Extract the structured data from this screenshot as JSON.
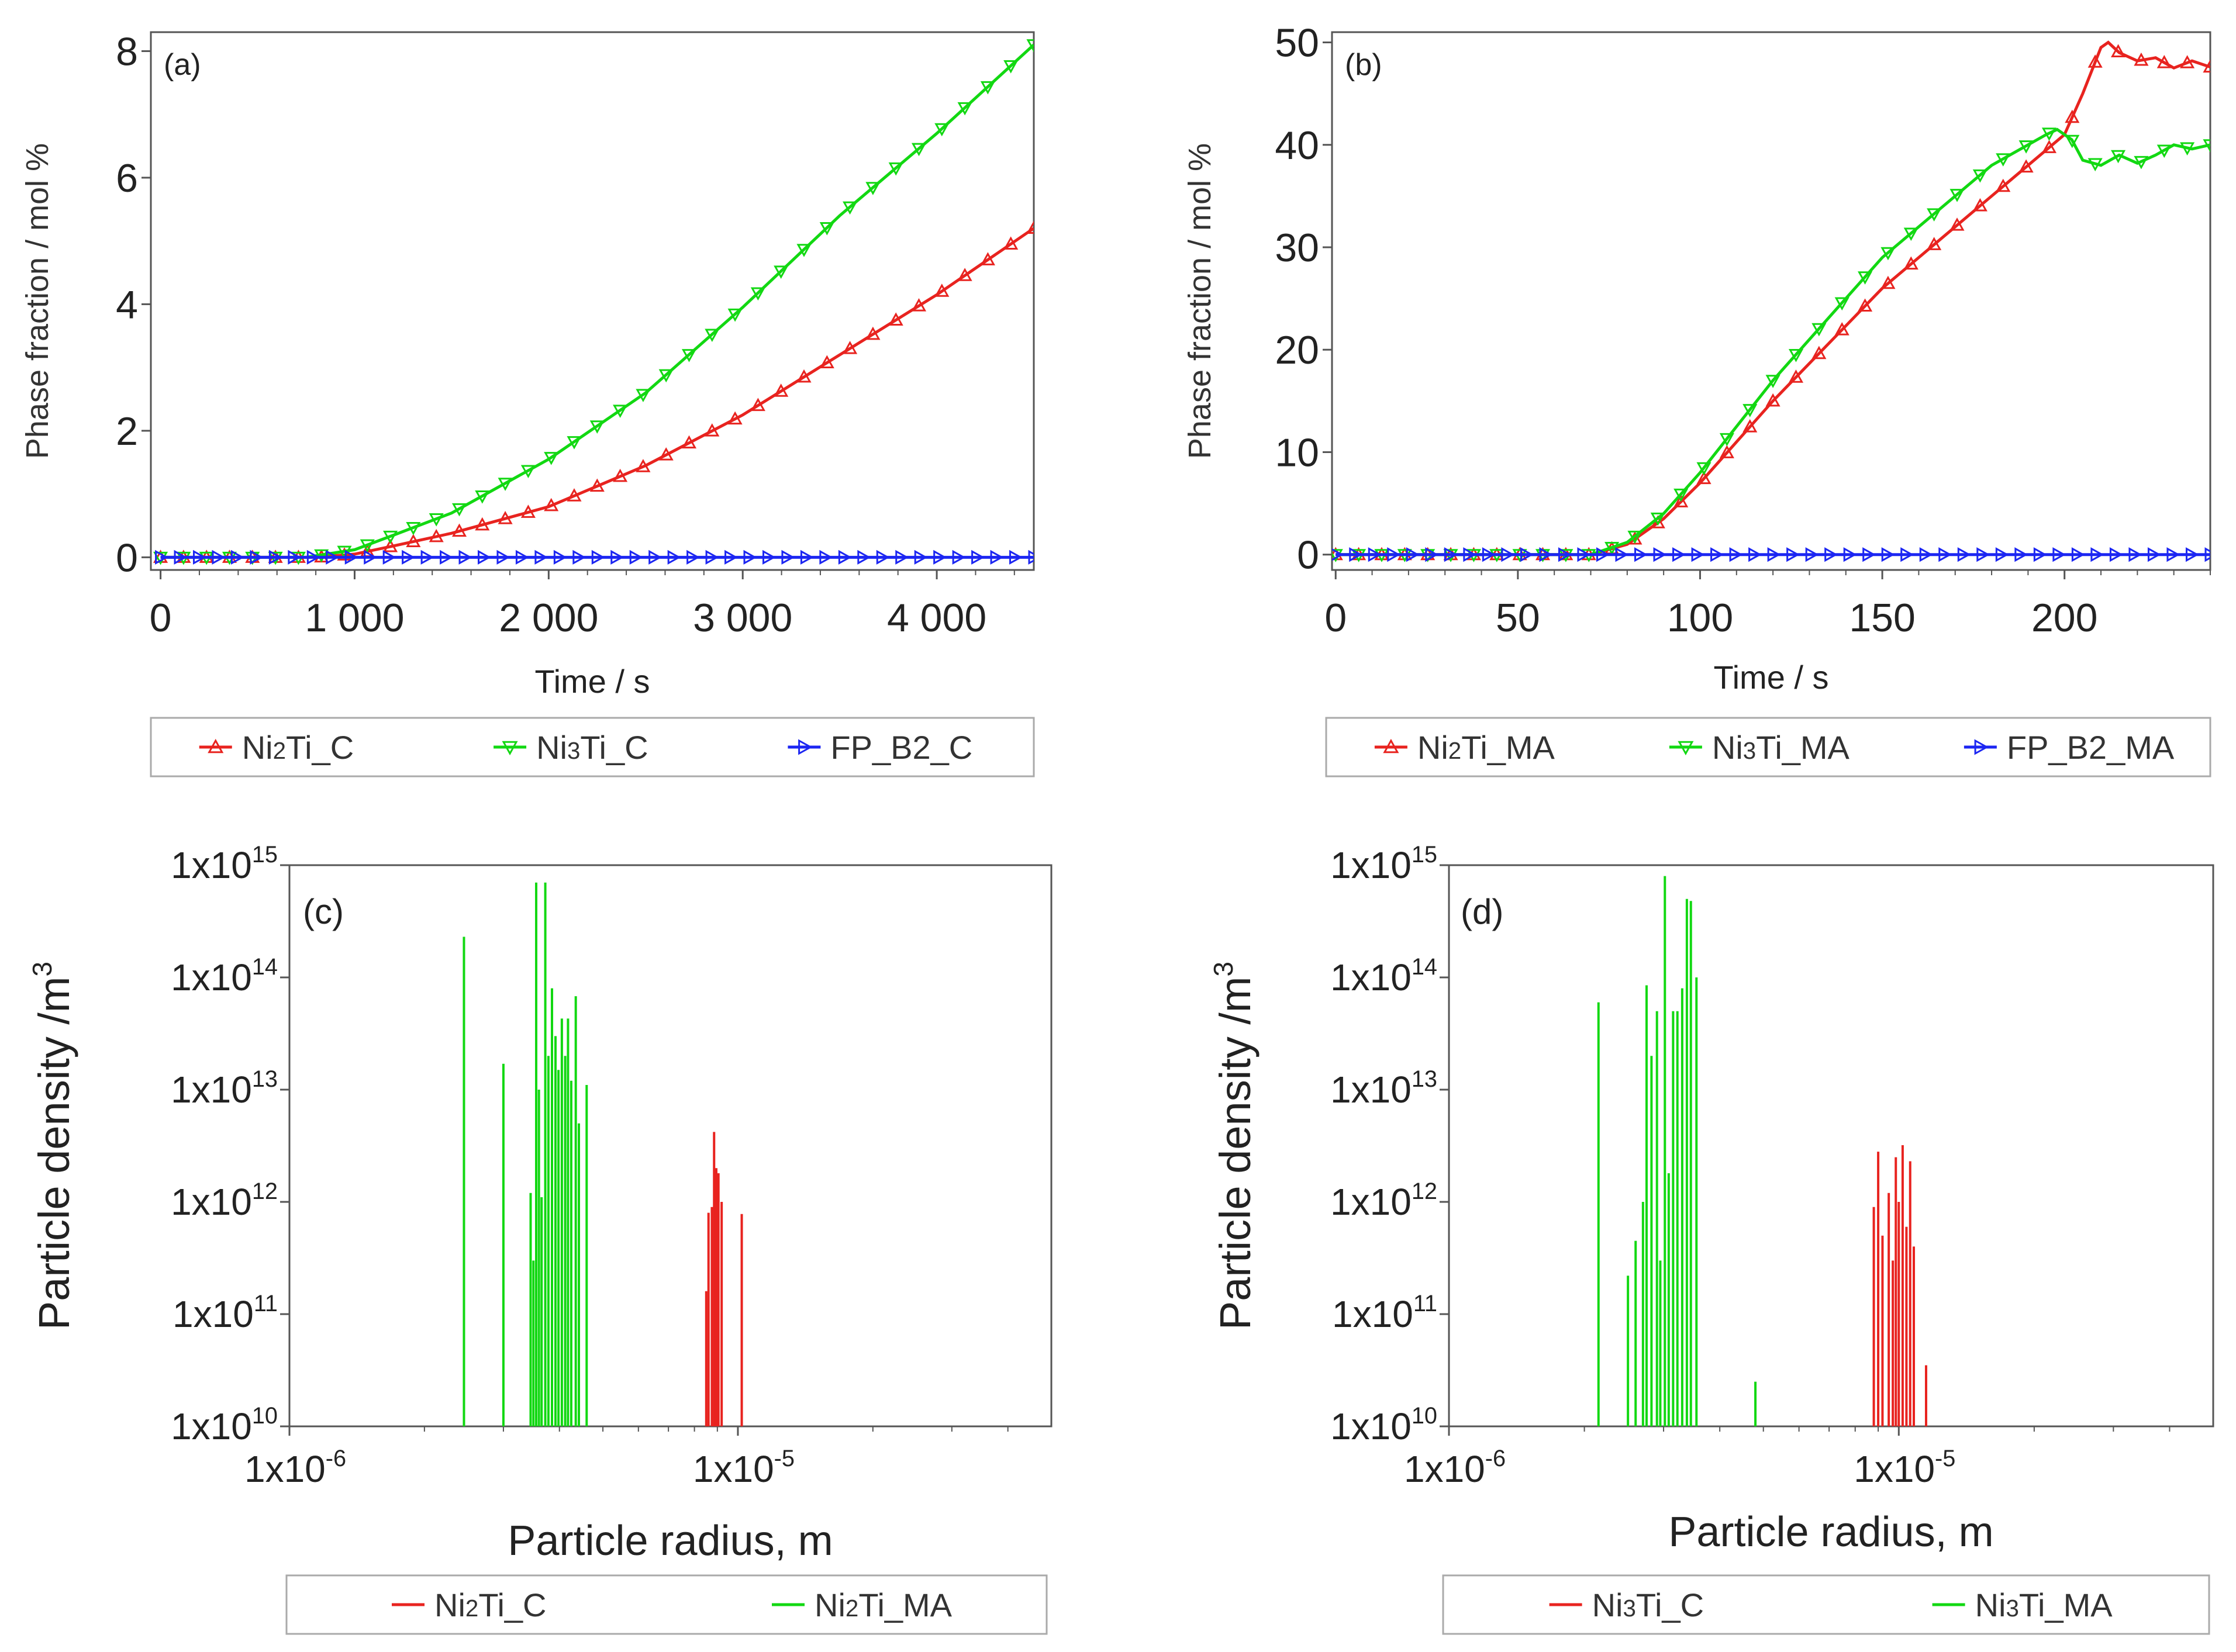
{
  "figure": "four-panel simulation figure",
  "colors": {
    "red": "#e8231f",
    "green": "#12d812",
    "blue": "#1c26f2",
    "frame": "#555555",
    "legend_border": "#aaaaaa",
    "text": "#333333"
  },
  "chart_data": [
    {
      "panel": "(a)",
      "type": "line",
      "xlabel": "Time / s",
      "ylabel": "Phase fraction / mol %",
      "xlim": [
        -50,
        4500
      ],
      "ylim": [
        -0.2,
        8.3
      ],
      "x_ticks": [
        0,
        1000,
        2000,
        3000,
        4000
      ],
      "x_tick_labels": [
        "0",
        "1 000",
        "2 000",
        "3 000",
        "4 000"
      ],
      "y_ticks": [
        0,
        2,
        4,
        6,
        8
      ],
      "y_tick_labels": [
        "0",
        "2",
        "4",
        "6",
        "8"
      ],
      "legend": [
        "Ni2Ti_C",
        "Ni3Ti_C",
        "FP_B2_C"
      ],
      "series": [
        {
          "name": "Ni2Ti_C",
          "color": "red",
          "marker": "triangle-up",
          "points": [
            [
              0,
              0
            ],
            [
              800,
              0
            ],
            [
              1000,
              0.05
            ],
            [
              1200,
              0.18
            ],
            [
              1500,
              0.38
            ],
            [
              2000,
              0.8
            ],
            [
              2500,
              1.45
            ],
            [
              3000,
              2.25
            ],
            [
              3500,
              3.2
            ],
            [
              4000,
              4.15
            ],
            [
              4500,
              5.2
            ]
          ]
        },
        {
          "name": "Ni3Ti_C",
          "color": "green",
          "marker": "triangle-down",
          "points": [
            [
              0,
              0
            ],
            [
              750,
              0
            ],
            [
              1000,
              0.12
            ],
            [
              1200,
              0.35
            ],
            [
              1500,
              0.7
            ],
            [
              2000,
              1.55
            ],
            [
              2500,
              2.6
            ],
            [
              3000,
              3.95
            ],
            [
              3500,
              5.4
            ],
            [
              4000,
              6.7
            ],
            [
              4500,
              8.1
            ]
          ]
        },
        {
          "name": "FP_B2_C",
          "color": "blue",
          "marker": "triangle-right",
          "points": [
            [
              0,
              0
            ],
            [
              4500,
              0
            ]
          ]
        }
      ]
    },
    {
      "panel": "(b)",
      "type": "line",
      "xlabel": "Time / s",
      "ylabel": "Phase fraction / mol %",
      "xlim": [
        -1,
        240
      ],
      "ylim": [
        -1.5,
        51
      ],
      "x_ticks": [
        0,
        50,
        100,
        150,
        200
      ],
      "x_tick_labels": [
        "0",
        "50",
        "100",
        "150",
        "200"
      ],
      "y_ticks": [
        0,
        10,
        20,
        30,
        40,
        50
      ],
      "y_tick_labels": [
        "0",
        "10",
        "20",
        "30",
        "40",
        "50"
      ],
      "legend": [
        "Ni2Ti_MA",
        "Ni3Ti_MA",
        "FP_B2_MA"
      ],
      "series": [
        {
          "name": "Ni2Ti_MA",
          "color": "red",
          "marker": "triangle-up",
          "points": [
            [
              0,
              0
            ],
            [
              70,
              0
            ],
            [
              80,
              1
            ],
            [
              90,
              3.5
            ],
            [
              100,
              7
            ],
            [
              120,
              15
            ],
            [
              150,
              26
            ],
            [
              180,
              35
            ],
            [
              200,
              41
            ],
            [
              205,
              45
            ],
            [
              210,
              49.5
            ],
            [
              212,
              50
            ],
            [
              215,
              49
            ],
            [
              220,
              48.2
            ],
            [
              225,
              48.5
            ],
            [
              230,
              47.5
            ],
            [
              235,
              48.2
            ],
            [
              240,
              47.6
            ]
          ]
        },
        {
          "name": "Ni3Ti_MA",
          "color": "green",
          "marker": "triangle-down",
          "points": [
            [
              0,
              0
            ],
            [
              70,
              0
            ],
            [
              80,
              1.2
            ],
            [
              90,
              4
            ],
            [
              100,
              8
            ],
            [
              120,
              17
            ],
            [
              150,
              29
            ],
            [
              180,
              38
            ],
            [
              195,
              41
            ],
            [
              198,
              41.5
            ],
            [
              202,
              40.5
            ],
            [
              205,
              38.5
            ],
            [
              210,
              38
            ],
            [
              215,
              39
            ],
            [
              220,
              38.2
            ],
            [
              225,
              39
            ],
            [
              230,
              40
            ],
            [
              235,
              39.6
            ],
            [
              240,
              40
            ]
          ]
        },
        {
          "name": "FP_B2_MA",
          "color": "blue",
          "marker": "triangle-right",
          "points": [
            [
              0,
              0
            ],
            [
              240,
              0
            ]
          ]
        }
      ]
    },
    {
      "panel": "(c)",
      "type": "bar",
      "log_x": true,
      "log_y": true,
      "xlabel": "Particle radius, m",
      "ylabel": "Particle density /m3",
      "xlim": [
        1e-06,
        5e-05
      ],
      "ylim": [
        10000000000.0,
        1000000000000000.0
      ],
      "x_ticks": [
        1e-06,
        1e-05
      ],
      "x_tick_labels": [
        "1x10-6",
        "1x10-5"
      ],
      "y_ticks": [
        10000000000.0,
        100000000000.0,
        1000000000000.0,
        10000000000000.0,
        100000000000000.0,
        1000000000000000.0
      ],
      "y_tick_labels": [
        "1x1010",
        "1x1011",
        "1x1012",
        "1x1013",
        "1x1014",
        "1x1015"
      ],
      "legend": [
        "Ni2Ti_C",
        "Ni2Ti_MA"
      ],
      "series": [
        {
          "name": "Ni2Ti_MA",
          "color": "green",
          "bars": [
            [
              2.45e-06,
              230000000000000.0
            ],
            [
              3e-06,
              17000000000000.0
            ],
            [
              3.45e-06,
              1200000000000.0
            ],
            [
              3.5e-06,
              300000000000.0
            ],
            [
              3.55e-06,
              700000000000000.0
            ],
            [
              3.6e-06,
              10000000000000.0
            ],
            [
              3.65e-06,
              1100000000000.0
            ],
            [
              3.72e-06,
              700000000000000.0
            ],
            [
              3.78e-06,
              20000000000000.0
            ],
            [
              3.85e-06,
              80000000000000.0
            ],
            [
              3.92e-06,
              30000000000000.0
            ],
            [
              3.98e-06,
              15000000000000.0
            ],
            [
              4.05e-06,
              43000000000000.0
            ],
            [
              4.12e-06,
              20000000000000.0
            ],
            [
              4.18e-06,
              43000000000000.0
            ],
            [
              4.25e-06,
              12000000000000.0
            ],
            [
              4.35e-06,
              68000000000000.0
            ],
            [
              4.42e-06,
              5000000000000.0
            ],
            [
              4.6e-06,
              11000000000000.0
            ]
          ]
        },
        {
          "name": "Ni2Ti_C",
          "color": "red",
          "bars": [
            [
              8.5e-06,
              160000000000.0
            ],
            [
              8.6e-06,
              800000000000.0
            ],
            [
              8.75e-06,
              900000000000.0
            ],
            [
              8.85e-06,
              4200000000000.0
            ],
            [
              8.95e-06,
              2000000000000.0
            ],
            [
              9.05e-06,
              1800000000000.0
            ],
            [
              9.2e-06,
              1000000000000.0
            ],
            [
              1.02e-05,
              780000000000.0
            ]
          ]
        }
      ]
    },
    {
      "panel": "(d)",
      "type": "bar",
      "log_x": true,
      "log_y": true,
      "xlabel": "Particle radius, m",
      "ylabel": "Particle density /m3",
      "xlim": [
        1e-06,
        5e-05
      ],
      "ylim": [
        10000000000.0,
        1000000000000000.0
      ],
      "x_ticks": [
        1e-06,
        1e-05
      ],
      "x_tick_labels": [
        "1x10-6",
        "1x10-5"
      ],
      "y_ticks": [
        10000000000.0,
        100000000000.0,
        1000000000000.0,
        10000000000000.0,
        100000000000000.0,
        1000000000000000.0
      ],
      "y_tick_labels": [
        "1x1010",
        "1x1011",
        "1x1012",
        "1x1013",
        "1x1014",
        "1x1015"
      ],
      "legend": [
        "Ni3Ti_C",
        "Ni3Ti_MA"
      ],
      "series": [
        {
          "name": "Ni3Ti_MA",
          "color": "green",
          "bars": [
            [
              2.15e-06,
              60000000000000.0
            ],
            [
              2.5e-06,
              220000000000.0
            ],
            [
              2.6e-06,
              450000000000.0
            ],
            [
              2.7e-06,
              1000000000000.0
            ],
            [
              2.75e-06,
              85000000000000.0
            ],
            [
              2.82e-06,
              20000000000000.0
            ],
            [
              2.9e-06,
              50000000000000.0
            ],
            [
              2.95e-06,
              300000000000.0
            ],
            [
              3.02e-06,
              800000000000000.0
            ],
            [
              3.08e-06,
              1800000000000.0
            ],
            [
              3.15e-06,
              50000000000000.0
            ],
            [
              3.22e-06,
              50000000000000.0
            ],
            [
              3.3e-06,
              80000000000000.0
            ],
            [
              3.38e-06,
              500000000000000.0
            ],
            [
              3.45e-06,
              480000000000000.0
            ],
            [
              3.55e-06,
              100000000000000.0
            ],
            [
              4.8e-06,
              25000000000.0
            ]
          ]
        },
        {
          "name": "Ni3Ti_C",
          "color": "red",
          "bars": [
            [
              8.8e-06,
              900000000000.0
            ],
            [
              9e-06,
              2800000000000.0
            ],
            [
              9.2e-06,
              500000000000.0
            ],
            [
              9.5e-06,
              1200000000000.0
            ],
            [
              9.7e-06,
              300000000000.0
            ],
            [
              9.85e-06,
              2500000000000.0
            ],
            [
              1e-05,
              1000000000000.0
            ],
            [
              1.02e-05,
              3200000000000.0
            ],
            [
              1.04e-05,
              600000000000.0
            ],
            [
              1.06e-05,
              2300000000000.0
            ],
            [
              1.08e-05,
              400000000000.0
            ],
            [
              1.15e-05,
              35000000000.0
            ]
          ]
        }
      ]
    }
  ]
}
